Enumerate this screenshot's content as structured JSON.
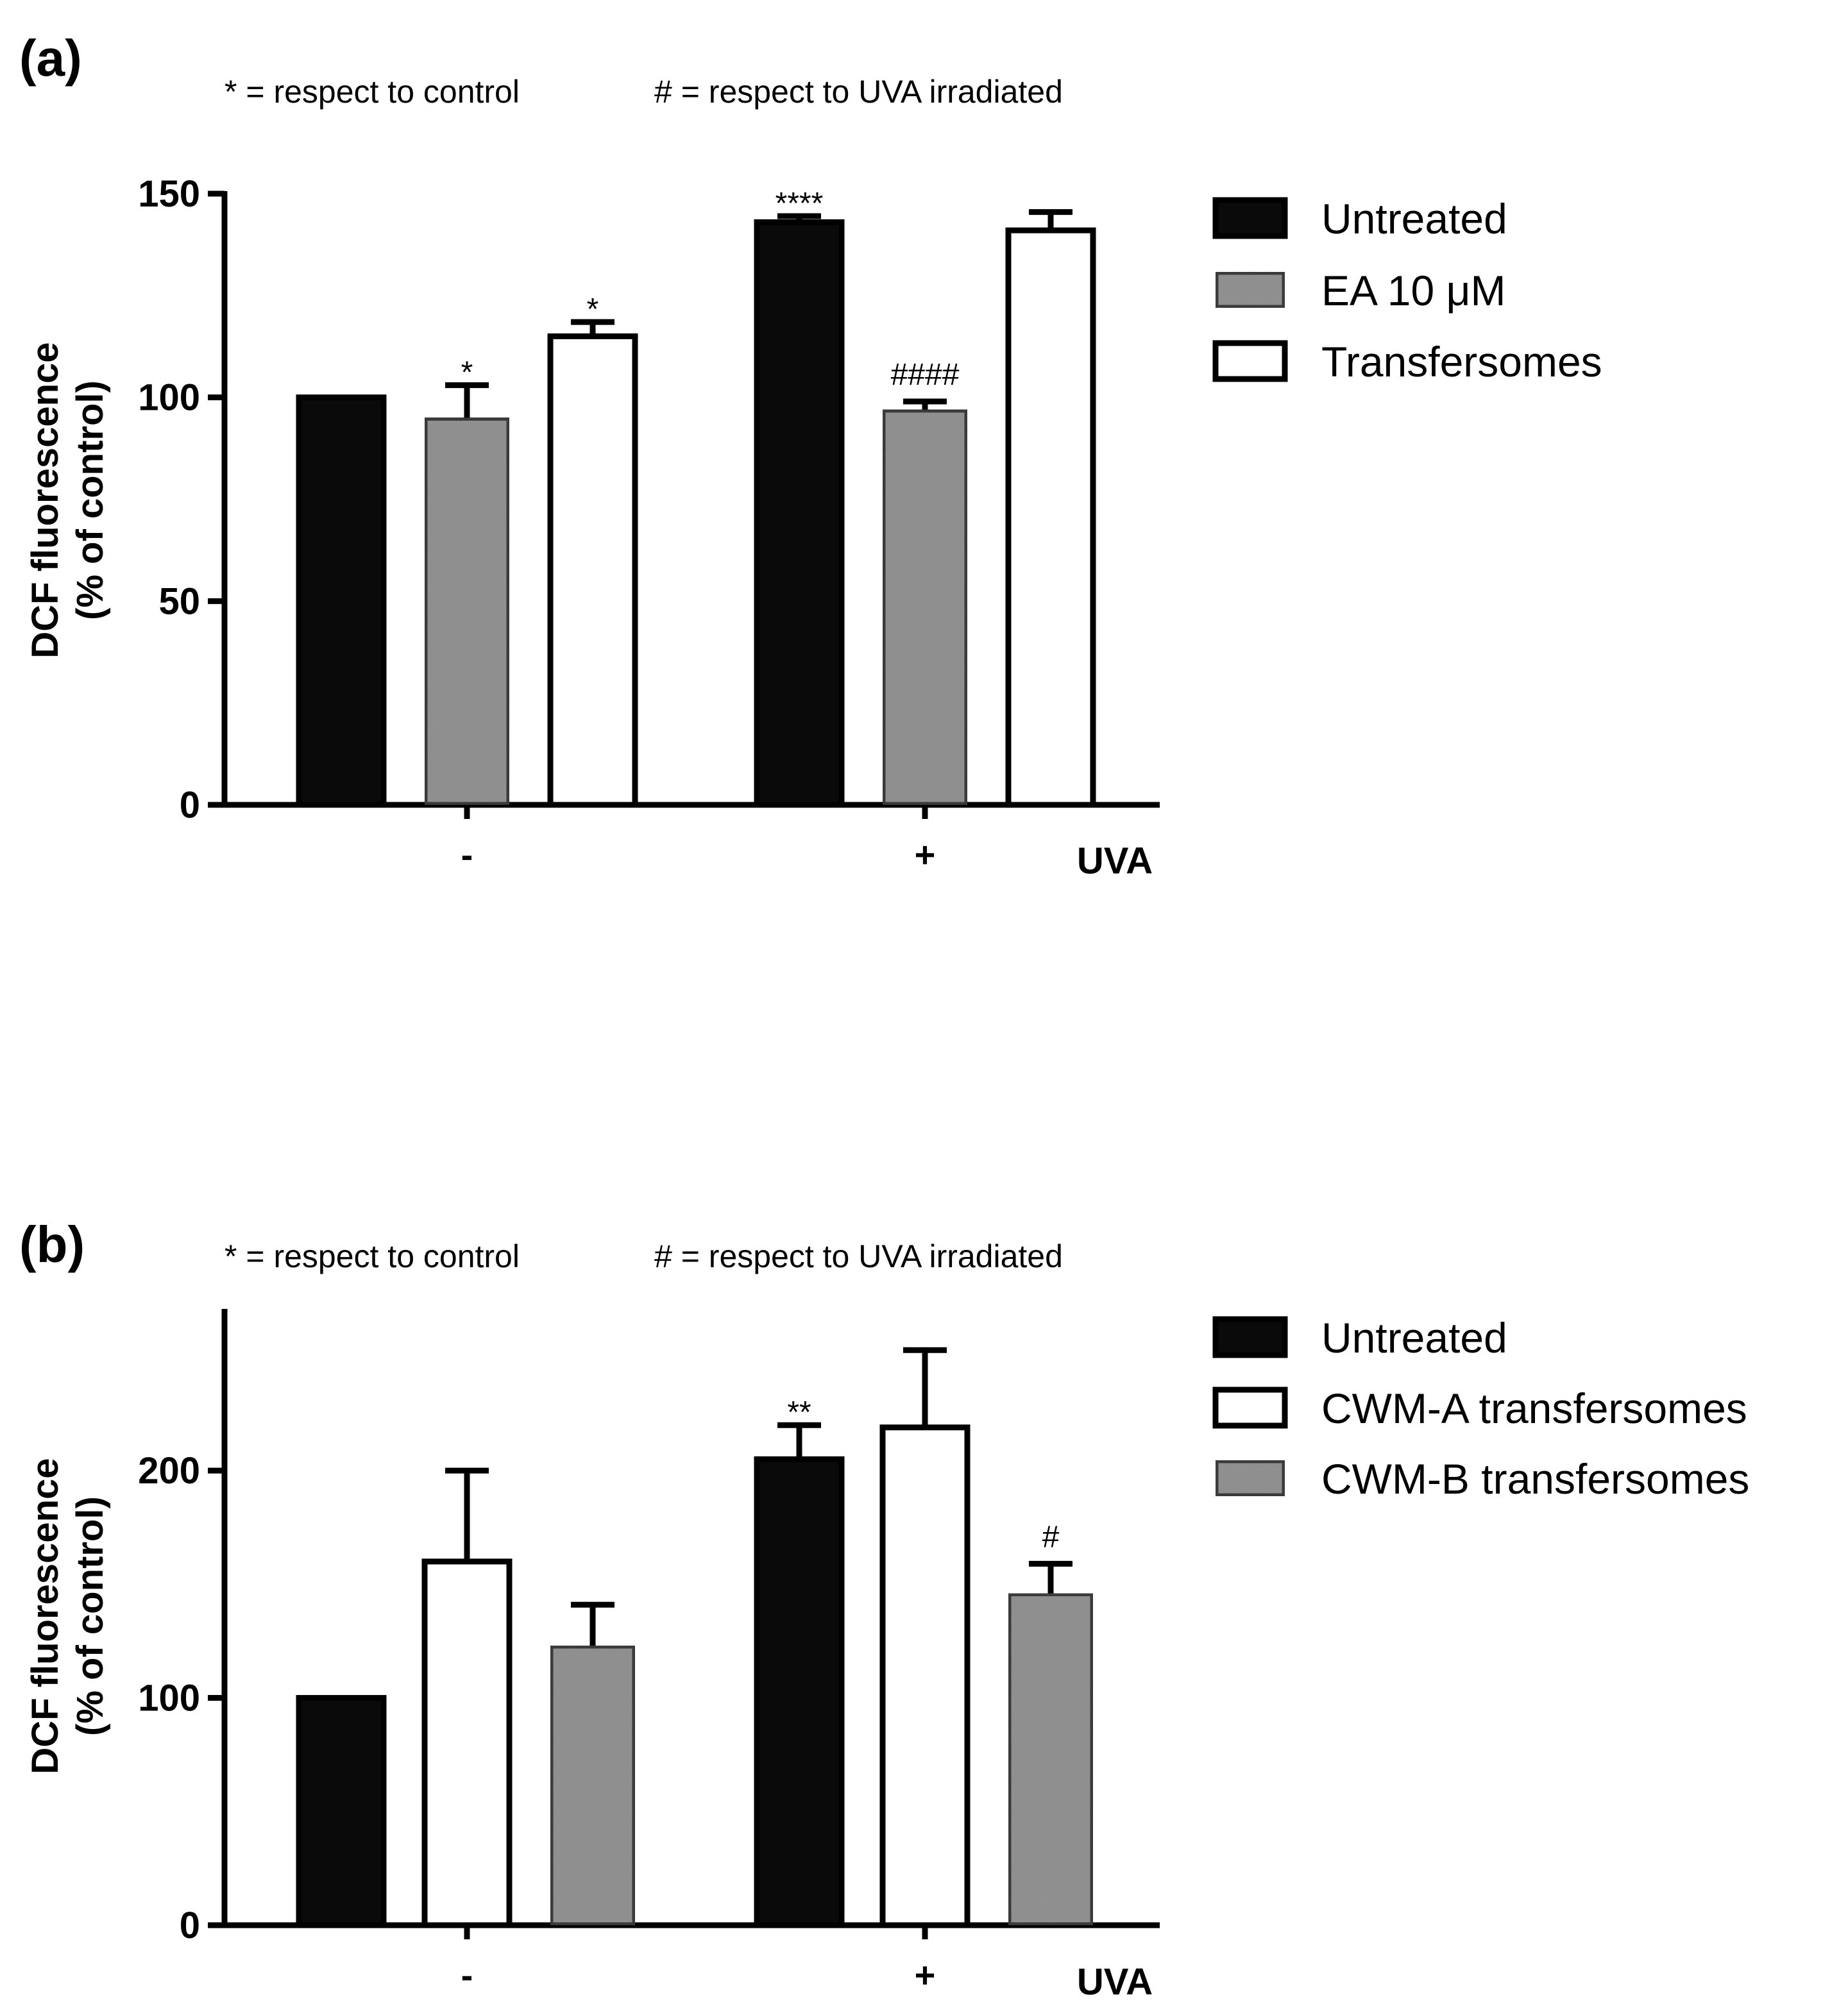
{
  "colors": {
    "untreated": "#0a0a0a",
    "gray_fill": "#8a8a8a",
    "white_fill": "#ffffff",
    "stroke": "#000000"
  },
  "chart_data": [
    {
      "type": "bar",
      "panel_label": "(a)",
      "notes": [
        "* = respect to control",
        "# = respect to UVA  irradiated"
      ],
      "ylabel_line1": "DCF fluorescence",
      "ylabel_line2": "(% of control)",
      "ylim": [
        0,
        150
      ],
      "yticks": [
        0,
        50,
        100,
        150
      ],
      "categories": [
        "-",
        "+"
      ],
      "xlabel": "UVA",
      "series": [
        {
          "name": "Untreated",
          "fill": "black",
          "values": [
            100,
            143
          ],
          "errors": [
            0,
            1.5
          ],
          "annotations": [
            "",
            "****"
          ]
        },
        {
          "name": "EA 10 μM",
          "fill": "gray",
          "values": [
            95,
            97
          ],
          "errors": [
            8,
            2
          ],
          "annotations": [
            "*",
            "####"
          ]
        },
        {
          "name": "Transfersomes",
          "fill": "white",
          "values": [
            115,
            141
          ],
          "errors": [
            3.5,
            4.5
          ],
          "annotations": [
            "*",
            ""
          ]
        }
      ]
    },
    {
      "type": "bar",
      "panel_label": "(b)",
      "notes": [
        "* = respect to control",
        "# = respect to UVA  irradiated"
      ],
      "ylabel_line1": "DCF fluorescence",
      "ylabel_line2": "(% of control)",
      "ylim": [
        0,
        270
      ],
      "yticks": [
        0,
        100,
        200
      ],
      "categories": [
        "-",
        "+"
      ],
      "xlabel": "UVA",
      "series": [
        {
          "name": "Untreated",
          "fill": "black",
          "values": [
            100,
            205
          ],
          "errors": [
            0,
            15
          ],
          "annotations": [
            "",
            "**"
          ]
        },
        {
          "name": "CWM-A transfersomes",
          "fill": "white",
          "values": [
            160,
            219
          ],
          "errors": [
            40,
            34
          ],
          "annotations": [
            "",
            ""
          ]
        },
        {
          "name": "CWM-B transfersomes",
          "fill": "gray",
          "values": [
            123,
            146
          ],
          "errors": [
            18,
            13
          ],
          "annotations": [
            "",
            "#"
          ]
        }
      ]
    }
  ]
}
